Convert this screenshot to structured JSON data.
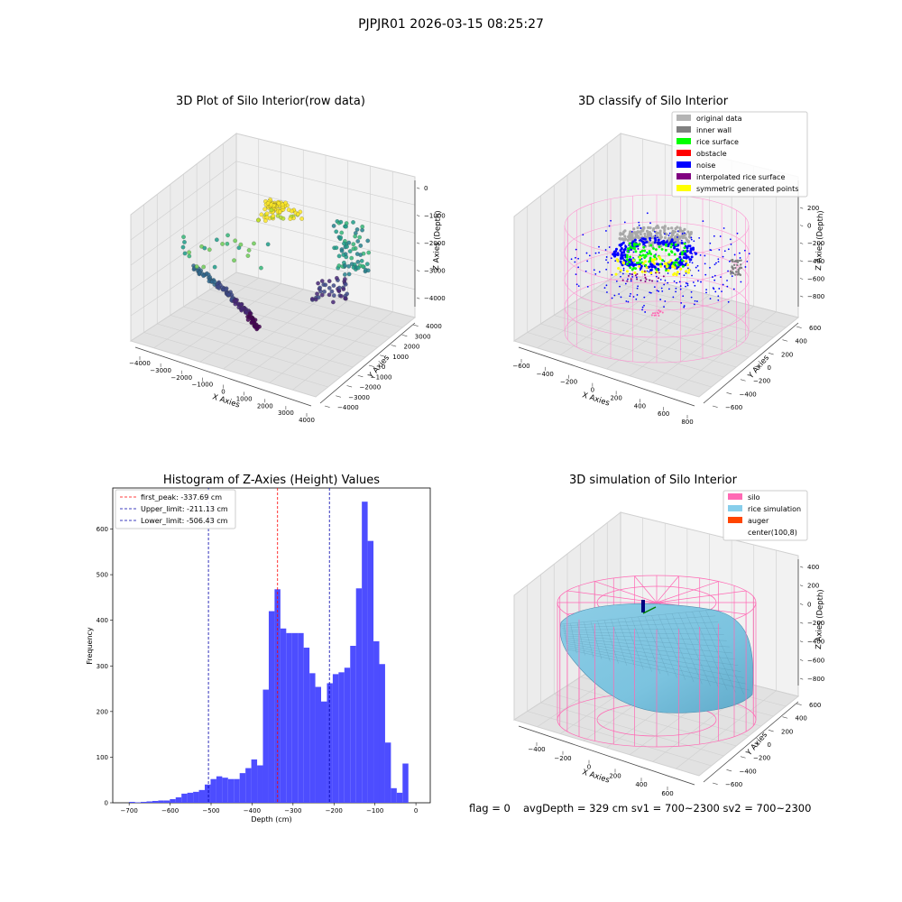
{
  "suptitle": "PJPJR01 2026-03-15 08:25:27",
  "footer": {
    "flag": "flag = 0",
    "stats": "avgDepth = 329 cm  sv1 = 700~2300  sv2 = 700~2300"
  },
  "chart_data": [
    {
      "type": "scatter",
      "title": "3D Plot of Silo Interior(row data)",
      "xlabel": "X Axies",
      "ylabel": "Y Axies",
      "zlabel": "Z Axies (Depth)",
      "x_ticks": [
        "−4000",
        "−3000",
        "−2000",
        "−1000",
        "0",
        "1000",
        "2000",
        "3000",
        "4000"
      ],
      "y_ticks": [
        "−4000",
        "−3000",
        "−2000",
        "−1000",
        "0",
        "1000",
        "2000",
        "3000",
        "4000"
      ],
      "z_ticks": [
        "0",
        "−1000",
        "−2000",
        "−3000",
        "−4000"
      ],
      "xlim": [
        -4000,
        4000
      ],
      "ylim": [
        -4000,
        4000
      ],
      "zlim": [
        -4500,
        0
      ],
      "colormap": "viridis"
    },
    {
      "type": "scatter",
      "title": "3D classify of Silo Interior",
      "xlabel": "X Axies",
      "ylabel": "Y Axies",
      "zlabel": "Z Axies (Depth)",
      "x_ticks": [
        "−600",
        "−400",
        "−200",
        "0",
        "200",
        "400",
        "600",
        "800"
      ],
      "y_ticks": [
        "−600",
        "−400",
        "−200",
        "0",
        "200",
        "400",
        "600"
      ],
      "z_ticks": [
        "200",
        "0",
        "−200",
        "−400",
        "−600",
        "−800"
      ],
      "legend_position": "top-right",
      "legend": [
        {
          "label": "original data",
          "color": "#b4b4b4"
        },
        {
          "label": "inner wall",
          "color": "#808080"
        },
        {
          "label": "rice surface",
          "color": "#00ff00"
        },
        {
          "label": "obstacle",
          "color": "#ff0000"
        },
        {
          "label": "noise",
          "color": "#0000ff"
        },
        {
          "label": "interpolated rice surface",
          "color": "#800080"
        },
        {
          "label": "symmetric generated points",
          "color": "#ffff00"
        }
      ],
      "silo_color": "#ff8ccf"
    },
    {
      "type": "bar",
      "title": "Histogram of Z-Axies (Height) Values",
      "xlabel": "Depth (cm)",
      "ylabel": "Frequency",
      "xlim": [
        -740,
        35
      ],
      "ylim": [
        0,
        690
      ],
      "x_ticks": [
        -700,
        -600,
        -500,
        -400,
        -300,
        -200,
        -100,
        0
      ],
      "y_ticks": [
        0,
        100,
        200,
        300,
        400,
        500,
        600
      ],
      "bar_color": "#4d4dff",
      "bin_start": -700,
      "bin_width": 14.2,
      "values": [
        2,
        1,
        2,
        3,
        4,
        5,
        5,
        8,
        12,
        20,
        22,
        24,
        28,
        40,
        52,
        58,
        55,
        52,
        52,
        65,
        76,
        95,
        82,
        248,
        420,
        468,
        382,
        372,
        372,
        372,
        340,
        284,
        254,
        222,
        262,
        282,
        286,
        296,
        344,
        470,
        660,
        574,
        354,
        304,
        132,
        32,
        22,
        86
      ],
      "vlines": [
        {
          "label": "first_peak: -337.69 cm",
          "value": -337.69,
          "color": "#ff0000"
        },
        {
          "label": "Upper_limit: -211.13 cm",
          "value": -211.13,
          "color": "#0000aa"
        },
        {
          "label": "Lower_limit: -506.43 cm",
          "value": -506.43,
          "color": "#0000aa"
        }
      ],
      "legend_position": "top-left"
    },
    {
      "type": "surface",
      "title": "3D simulation of Silo Interior",
      "xlabel": "X Axies",
      "ylabel": "Y Axies",
      "zlabel": "Z Axies (Depth)",
      "x_ticks": [
        "−400",
        "−200",
        "0",
        "200",
        "400",
        "600"
      ],
      "y_ticks": [
        "−600",
        "−400",
        "−200",
        "0",
        "200",
        "400",
        "600"
      ],
      "z_ticks": [
        "400",
        "200",
        "0",
        "−200",
        "−400",
        "−600",
        "−800"
      ],
      "legend_position": "top-right",
      "legend": [
        {
          "label": "silo",
          "color": "#ff69b4"
        },
        {
          "label": "rice simulation",
          "color": "#87ceeb"
        },
        {
          "label": "auger",
          "color": "#ff4500"
        },
        {
          "label": "center(100,8)",
          "color": "#ffffff"
        }
      ]
    }
  ]
}
